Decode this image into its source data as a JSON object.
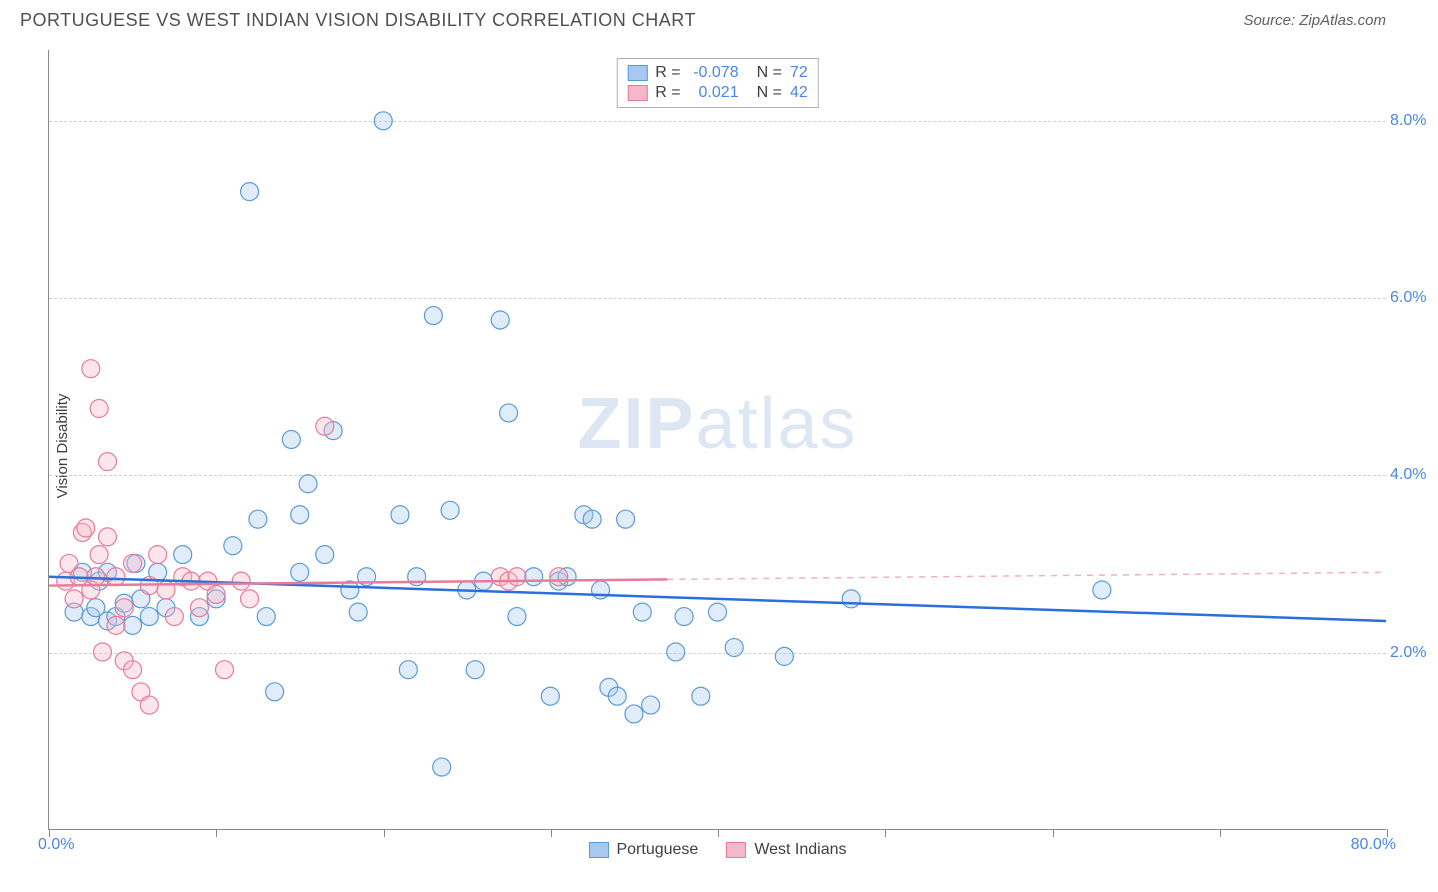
{
  "title": "PORTUGUESE VS WEST INDIAN VISION DISABILITY CORRELATION CHART",
  "source": "Source: ZipAtlas.com",
  "watermark": "ZIPatlas",
  "y_axis_title": "Vision Disability",
  "chart": {
    "type": "scatter",
    "xlim": [
      0,
      80
    ],
    "ylim": [
      0,
      8.8
    ],
    "x_start_label": "0.0%",
    "x_end_label": "80.0%",
    "x_ticks": [
      0,
      10,
      20,
      30,
      40,
      50,
      60,
      70,
      80
    ],
    "y_gridlines": [
      2.0,
      4.0,
      6.0,
      8.0
    ],
    "y_tick_labels": [
      "2.0%",
      "4.0%",
      "6.0%",
      "8.0%"
    ],
    "y_tick_color": "#4a86e8",
    "grid_color": "#d0d0d0",
    "background_color": "#ffffff",
    "marker_radius": 9,
    "marker_fill_opacity": 0.35,
    "marker_stroke_width": 1.2,
    "series": [
      {
        "name": "Portuguese",
        "color_fill": "#a8c8f0",
        "color_stroke": "#5b9bd5",
        "trend_color": "#2a6fdb",
        "trend_y_start": 2.85,
        "trend_y_end": 2.35,
        "trend_dash_after_x": 80,
        "R": "-0.078",
        "N": "72",
        "points": [
          [
            1.5,
            2.45
          ],
          [
            2.0,
            2.9
          ],
          [
            2.5,
            2.4
          ],
          [
            2.8,
            2.5
          ],
          [
            3.0,
            2.8
          ],
          [
            3.5,
            2.35
          ],
          [
            3.5,
            2.9
          ],
          [
            4.0,
            2.4
          ],
          [
            4.5,
            2.55
          ],
          [
            5.0,
            2.3
          ],
          [
            5.2,
            3.0
          ],
          [
            5.5,
            2.6
          ],
          [
            6.0,
            2.4
          ],
          [
            6.5,
            2.9
          ],
          [
            7.0,
            2.5
          ],
          [
            8.0,
            3.1
          ],
          [
            9.0,
            2.4
          ],
          [
            10.0,
            2.6
          ],
          [
            11.0,
            3.2
          ],
          [
            12.0,
            7.2
          ],
          [
            12.5,
            3.5
          ],
          [
            13.0,
            2.4
          ],
          [
            13.5,
            1.55
          ],
          [
            14.5,
            4.4
          ],
          [
            15.0,
            2.9
          ],
          [
            15.0,
            3.55
          ],
          [
            15.5,
            3.9
          ],
          [
            16.5,
            3.1
          ],
          [
            17.0,
            4.5
          ],
          [
            18.0,
            2.7
          ],
          [
            18.5,
            2.45
          ],
          [
            19.0,
            2.85
          ],
          [
            20.0,
            8.0
          ],
          [
            21.0,
            3.55
          ],
          [
            21.5,
            1.8
          ],
          [
            22.0,
            2.85
          ],
          [
            23.0,
            5.8
          ],
          [
            23.5,
            0.7
          ],
          [
            24.0,
            3.6
          ],
          [
            25.0,
            2.7
          ],
          [
            25.5,
            1.8
          ],
          [
            26.0,
            2.8
          ],
          [
            27.0,
            5.75
          ],
          [
            27.5,
            4.7
          ],
          [
            28.0,
            2.4
          ],
          [
            29.0,
            2.85
          ],
          [
            30.0,
            1.5
          ],
          [
            30.5,
            2.8
          ],
          [
            31.0,
            2.85
          ],
          [
            32.0,
            3.55
          ],
          [
            32.5,
            3.5
          ],
          [
            33.0,
            2.7
          ],
          [
            33.5,
            1.6
          ],
          [
            34.0,
            1.5
          ],
          [
            34.5,
            3.5
          ],
          [
            35.0,
            1.3
          ],
          [
            35.5,
            2.45
          ],
          [
            36.0,
            1.4
          ],
          [
            37.5,
            2.0
          ],
          [
            38.0,
            2.4
          ],
          [
            39.0,
            1.5
          ],
          [
            40.0,
            2.45
          ],
          [
            41.0,
            2.05
          ],
          [
            44.0,
            1.95
          ],
          [
            48.0,
            2.6
          ],
          [
            63.0,
            2.7
          ]
        ]
      },
      {
        "name": "West Indians",
        "color_fill": "#f5b8c8",
        "color_stroke": "#e87b9a",
        "trend_color": "#e87b9a",
        "trend_y_start": 2.75,
        "trend_y_end": 2.9,
        "trend_dash_after_x": 37,
        "R": "0.021",
        "N": "42",
        "points": [
          [
            1.0,
            2.8
          ],
          [
            1.2,
            3.0
          ],
          [
            1.5,
            2.6
          ],
          [
            1.8,
            2.85
          ],
          [
            2.0,
            3.35
          ],
          [
            2.2,
            3.4
          ],
          [
            2.5,
            2.7
          ],
          [
            2.5,
            5.2
          ],
          [
            2.8,
            2.85
          ],
          [
            3.0,
            3.1
          ],
          [
            3.0,
            4.75
          ],
          [
            3.2,
            2.0
          ],
          [
            3.5,
            3.3
          ],
          [
            3.5,
            4.15
          ],
          [
            4.0,
            2.3
          ],
          [
            4.0,
            2.85
          ],
          [
            4.5,
            1.9
          ],
          [
            4.5,
            2.5
          ],
          [
            5.0,
            3.0
          ],
          [
            5.0,
            1.8
          ],
          [
            5.5,
            1.55
          ],
          [
            6.0,
            2.75
          ],
          [
            6.0,
            1.4
          ],
          [
            6.5,
            3.1
          ],
          [
            7.0,
            2.7
          ],
          [
            7.5,
            2.4
          ],
          [
            8.0,
            2.85
          ],
          [
            8.5,
            2.8
          ],
          [
            9.0,
            2.5
          ],
          [
            9.5,
            2.8
          ],
          [
            10.0,
            2.65
          ],
          [
            10.5,
            1.8
          ],
          [
            11.5,
            2.8
          ],
          [
            12.0,
            2.6
          ],
          [
            16.5,
            4.55
          ],
          [
            27.0,
            2.85
          ],
          [
            27.5,
            2.8
          ],
          [
            28.0,
            2.85
          ],
          [
            30.5,
            2.85
          ]
        ]
      }
    ]
  },
  "legend_top": {
    "r_label": "R =",
    "n_label": "N ="
  },
  "legend_bottom_labels": [
    "Portuguese",
    "West Indians"
  ]
}
